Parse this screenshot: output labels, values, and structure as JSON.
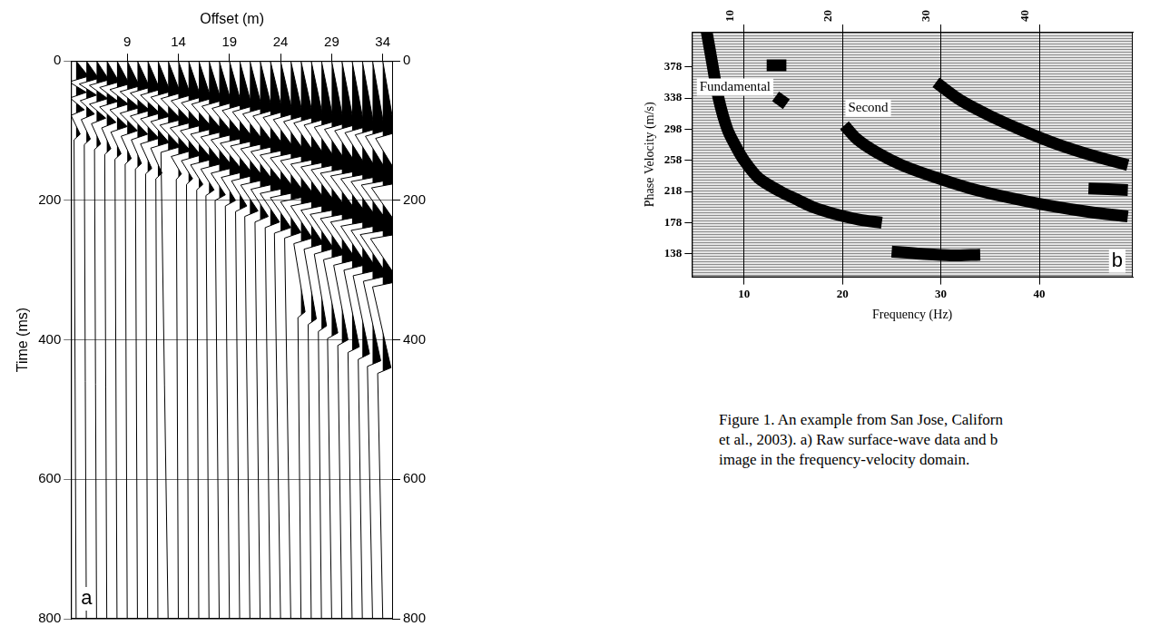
{
  "chart_data": [
    {
      "type": "wiggle",
      "panel_label": "a",
      "xlabel": "Offset (m)",
      "ylabel": "Time (ms)",
      "xlim": [
        3.5,
        35
      ],
      "xticks": [
        9,
        14,
        19,
        24,
        29,
        34
      ],
      "ylim": [
        0,
        800
      ],
      "yticks": [
        0,
        200,
        400,
        600,
        800
      ],
      "y2lim": [
        0,
        800
      ],
      "y2ticks": [
        0,
        200,
        400,
        600,
        800
      ],
      "grid": true,
      "color": "#000000",
      "traces": [
        {
          "offset": 4,
          "time": [
            0,
            22,
            30,
            45,
            53,
            70,
            78,
            105,
            113,
            800
          ],
          "amplitude": [
            0,
            1.2,
            -0.7,
            1.0,
            -0.6,
            0.8,
            -0.5,
            0.4,
            -0.2,
            0
          ]
        },
        {
          "offset": 5,
          "time": [
            0,
            25,
            33,
            49,
            57,
            76,
            84,
            112,
            120,
            800
          ],
          "amplitude": [
            0,
            1.2,
            -0.7,
            1.0,
            -0.6,
            0.8,
            -0.5,
            0.4,
            -0.2,
            0
          ]
        },
        {
          "offset": 6,
          "time": [
            0,
            27,
            35,
            54,
            62,
            82,
            90,
            119,
            127,
            800
          ],
          "amplitude": [
            0,
            1.2,
            -0.7,
            1.1,
            -0.7,
            0.9,
            -0.5,
            0.4,
            -0.2,
            0
          ]
        },
        {
          "offset": 7,
          "time": [
            0,
            30,
            38,
            58,
            66,
            88,
            96,
            126,
            134,
            800
          ],
          "amplitude": [
            0,
            1.2,
            -0.7,
            1.1,
            -0.7,
            0.9,
            -0.5,
            0.4,
            -0.2,
            0
          ]
        },
        {
          "offset": 8,
          "time": [
            0,
            33,
            41,
            62,
            70,
            94,
            102,
            133,
            141,
            800
          ],
          "amplitude": [
            0,
            1.2,
            -0.7,
            1.1,
            -0.7,
            1.0,
            -0.6,
            0.4,
            -0.2,
            0
          ]
        },
        {
          "offset": 9,
          "time": [
            0,
            36,
            44,
            67,
            75,
            100,
            108,
            140,
            148,
            800
          ],
          "amplitude": [
            0,
            1.2,
            -0.7,
            1.2,
            -0.7,
            1.0,
            -0.6,
            0.4,
            -0.2,
            0
          ]
        },
        {
          "offset": 10,
          "time": [
            0,
            38,
            46,
            71,
            79,
            105,
            113,
            147,
            155,
            800
          ],
          "amplitude": [
            0,
            1.2,
            -0.7,
            1.2,
            -0.7,
            1.0,
            -0.6,
            0.4,
            -0.2,
            0
          ]
        },
        {
          "offset": 11,
          "time": [
            0,
            41,
            49,
            75,
            83,
            111,
            119,
            154,
            162,
            800
          ],
          "amplitude": [
            0,
            1.2,
            -0.7,
            1.2,
            -0.7,
            1.1,
            -0.7,
            0.4,
            -0.2,
            0
          ]
        },
        {
          "offset": 12,
          "time": [
            0,
            44,
            52,
            79,
            87,
            117,
            125,
            161,
            169,
            800
          ],
          "amplitude": [
            0,
            1.2,
            -0.7,
            1.2,
            -0.7,
            1.1,
            -0.7,
            0.4,
            -0.2,
            0
          ]
        },
        {
          "offset": 13,
          "time": [
            0,
            46,
            54,
            84,
            92,
            123,
            131,
            800
          ],
          "amplitude": [
            0,
            1.2,
            -0.7,
            1.3,
            -0.8,
            1.2,
            -0.7,
            0
          ]
        },
        {
          "offset": 14,
          "time": [
            0,
            49,
            57,
            88,
            96,
            129,
            137,
            162,
            170,
            800
          ],
          "amplitude": [
            0,
            1.2,
            -0.7,
            1.3,
            -0.8,
            1.2,
            -0.7,
            0.3,
            -0.2,
            0
          ]
        },
        {
          "offset": 15,
          "time": [
            0,
            52,
            60,
            92,
            100,
            135,
            143,
            169,
            177,
            800
          ],
          "amplitude": [
            0,
            1.2,
            -0.7,
            1.3,
            -0.8,
            1.2,
            -0.7,
            0.4,
            -0.2,
            0
          ]
        },
        {
          "offset": 16,
          "time": [
            0,
            54,
            62,
            97,
            105,
            141,
            149,
            177,
            185,
            800
          ],
          "amplitude": [
            0,
            1.2,
            -0.7,
            1.4,
            -0.8,
            1.3,
            -0.8,
            0.4,
            -0.2,
            0
          ]
        },
        {
          "offset": 17,
          "time": [
            0,
            57,
            65,
            101,
            109,
            147,
            155,
            185,
            193,
            800
          ],
          "amplitude": [
            0,
            1.2,
            -0.7,
            1.4,
            -0.8,
            1.3,
            -0.8,
            0.5,
            -0.3,
            0
          ]
        },
        {
          "offset": 18,
          "time": [
            0,
            60,
            68,
            105,
            113,
            153,
            161,
            192,
            200,
            800
          ],
          "amplitude": [
            0,
            1.2,
            -0.7,
            1.4,
            -0.8,
            1.4,
            -0.8,
            0.6,
            -0.4,
            0
          ]
        },
        {
          "offset": 19,
          "time": [
            0,
            63,
            71,
            110,
            118,
            159,
            167,
            200,
            208,
            800
          ],
          "amplitude": [
            0,
            1.2,
            -0.7,
            1.5,
            -0.9,
            1.4,
            -0.8,
            0.6,
            -0.4,
            0
          ]
        },
        {
          "offset": 20,
          "time": [
            0,
            65,
            73,
            114,
            122,
            164,
            172,
            208,
            216,
            800
          ],
          "amplitude": [
            0,
            1.2,
            -0.7,
            1.5,
            -0.9,
            1.4,
            -0.8,
            0.7,
            -0.4,
            0
          ]
        },
        {
          "offset": 21,
          "time": [
            0,
            68,
            76,
            118,
            126,
            170,
            178,
            215,
            223,
            800
          ],
          "amplitude": [
            0,
            1.2,
            -0.7,
            1.5,
            -0.9,
            1.5,
            -0.9,
            0.8,
            -0.5,
            0
          ]
        },
        {
          "offset": 22,
          "time": [
            0,
            71,
            79,
            122,
            130,
            176,
            184,
            223,
            231,
            800
          ],
          "amplitude": [
            0,
            1.2,
            -0.7,
            1.5,
            -0.9,
            1.5,
            -0.9,
            0.8,
            -0.5,
            0
          ]
        },
        {
          "offset": 23,
          "time": [
            0,
            73,
            81,
            127,
            135,
            182,
            190,
            231,
            239,
            800
          ],
          "amplitude": [
            0,
            1.2,
            -0.7,
            1.6,
            -1.0,
            1.6,
            -1.0,
            0.9,
            -0.5,
            0
          ]
        },
        {
          "offset": 24,
          "time": [
            0,
            76,
            84,
            131,
            139,
            188,
            196,
            239,
            247,
            800
          ],
          "amplitude": [
            0,
            1.2,
            -0.7,
            1.6,
            -1.0,
            1.6,
            -1.0,
            1.0,
            -0.6,
            0
          ]
        },
        {
          "offset": 25,
          "time": [
            0,
            79,
            87,
            135,
            143,
            194,
            202,
            246,
            254,
            800
          ],
          "amplitude": [
            0,
            1.2,
            -0.7,
            1.6,
            -1.0,
            1.6,
            -1.0,
            1.0,
            -0.6,
            0
          ]
        },
        {
          "offset": 26,
          "time": [
            0,
            81,
            89,
            140,
            148,
            200,
            208,
            254,
            262,
            360,
            368,
            800
          ],
          "amplitude": [
            0,
            1.2,
            -0.7,
            1.7,
            -1.0,
            1.7,
            -1.0,
            1.1,
            -0.7,
            0.4,
            -0.3,
            0
          ]
        },
        {
          "offset": 27,
          "time": [
            0,
            84,
            92,
            144,
            152,
            206,
            214,
            262,
            270,
            370,
            378,
            800
          ],
          "amplitude": [
            0,
            1.2,
            -0.7,
            1.7,
            -1.0,
            1.7,
            -1.0,
            1.2,
            -0.7,
            0.5,
            -0.3,
            0
          ]
        },
        {
          "offset": 28,
          "time": [
            0,
            87,
            95,
            148,
            156,
            212,
            220,
            269,
            277,
            380,
            388,
            800
          ],
          "amplitude": [
            0,
            1.2,
            -0.7,
            1.7,
            -1.0,
            1.8,
            -1.1,
            1.2,
            -0.7,
            0.5,
            -0.3,
            0
          ]
        },
        {
          "offset": 29,
          "time": [
            0,
            90,
            98,
            153,
            161,
            218,
            226,
            277,
            285,
            390,
            398,
            800
          ],
          "amplitude": [
            0,
            1.2,
            -0.7,
            1.8,
            -1.1,
            1.8,
            -1.1,
            1.3,
            -0.8,
            0.6,
            -0.4,
            0
          ]
        },
        {
          "offset": 30,
          "time": [
            0,
            92,
            100,
            157,
            165,
            223,
            231,
            285,
            293,
            400,
            408,
            800
          ],
          "amplitude": [
            0,
            1.2,
            -0.7,
            1.8,
            -1.1,
            1.8,
            -1.1,
            1.4,
            -0.8,
            0.6,
            -0.4,
            0
          ]
        },
        {
          "offset": 31,
          "time": [
            0,
            95,
            103,
            161,
            169,
            229,
            237,
            292,
            300,
            410,
            418,
            800
          ],
          "amplitude": [
            0,
            1.2,
            -0.7,
            1.8,
            -1.1,
            1.9,
            -1.1,
            1.4,
            -0.8,
            0.7,
            -0.4,
            0
          ]
        },
        {
          "offset": 32,
          "time": [
            0,
            98,
            106,
            165,
            173,
            235,
            243,
            300,
            308,
            420,
            428,
            800
          ],
          "amplitude": [
            0,
            1.2,
            -0.7,
            1.8,
            -1.1,
            1.9,
            -1.1,
            1.5,
            -0.9,
            0.7,
            -0.4,
            0
          ]
        },
        {
          "offset": 33,
          "time": [
            0,
            100,
            108,
            170,
            178,
            241,
            249,
            308,
            316,
            430,
            438,
            800
          ],
          "amplitude": [
            0,
            1.2,
            -0.7,
            1.9,
            -1.1,
            2.0,
            -1.2,
            1.5,
            -0.9,
            0.8,
            -0.5,
            0
          ]
        },
        {
          "offset": 34,
          "time": [
            0,
            103,
            111,
            174,
            182,
            247,
            255,
            316,
            324,
            440,
            448,
            800
          ],
          "amplitude": [
            0,
            1.2,
            -0.7,
            1.9,
            -1.1,
            2.0,
            -1.2,
            1.6,
            -1.0,
            0.8,
            -0.5,
            0
          ]
        }
      ]
    },
    {
      "type": "line",
      "panel_label": "b",
      "xlabel": "Frequency (Hz)",
      "ylabel": "Phase Velocity (m/s)",
      "xlim": [
        4.7,
        49.5
      ],
      "xticks": [
        10,
        20,
        30,
        40
      ],
      "ylim": [
        108,
        423
      ],
      "yticks": [
        138,
        178,
        218,
        258,
        298,
        338,
        378
      ],
      "grid": true,
      "series": [
        {
          "color": "#000000",
          "x": [
            6.2,
            6.8,
            7.4,
            8.3,
            9.2,
            10.0,
            11.5,
            13.7,
            15.5,
            17.0,
            19.0,
            21.7,
            24.0
          ],
          "values": [
            423,
            380,
            338,
            298,
            275,
            258,
            235,
            218,
            207,
            198,
            190,
            182,
            178
          ]
        },
        {
          "color": "#000000",
          "x": [
            20.2,
            21.5,
            23.5,
            26,
            29,
            33,
            37,
            41,
            45,
            49
          ],
          "values": [
            303,
            285,
            268,
            252,
            238,
            222,
            210,
            200,
            192,
            186
          ]
        },
        {
          "color": "#000000",
          "x": [
            29.5,
            32,
            35,
            38,
            42,
            46,
            49
          ],
          "values": [
            358,
            335,
            315,
            298,
            278,
            262,
            252
          ]
        },
        {
          "color": "#000000",
          "x": [
            12.3,
            14.3
          ],
          "values": [
            380,
            380
          ]
        },
        {
          "color": "#000000",
          "x": [
            13.2,
            14.3
          ],
          "values": [
            340,
            330
          ]
        },
        {
          "color": "#000000",
          "x": [
            25,
            28,
            31,
            34
          ],
          "values": [
            141,
            138,
            136,
            137
          ]
        },
        {
          "color": "#000000",
          "x": [
            45,
            49
          ],
          "values": [
            222,
            220
          ]
        }
      ],
      "annotations": [
        {
          "text": "Fundamental",
          "x": 5.2,
          "y": 352
        },
        {
          "text": "Second",
          "x": 20.3,
          "y": 325
        }
      ]
    }
  ],
  "caption": [
    "Figure 1. An example from San Jose, Californ",
    "et al., 2003). a) Raw surface-wave data and b",
    "image in the frequency-velocity domain."
  ]
}
